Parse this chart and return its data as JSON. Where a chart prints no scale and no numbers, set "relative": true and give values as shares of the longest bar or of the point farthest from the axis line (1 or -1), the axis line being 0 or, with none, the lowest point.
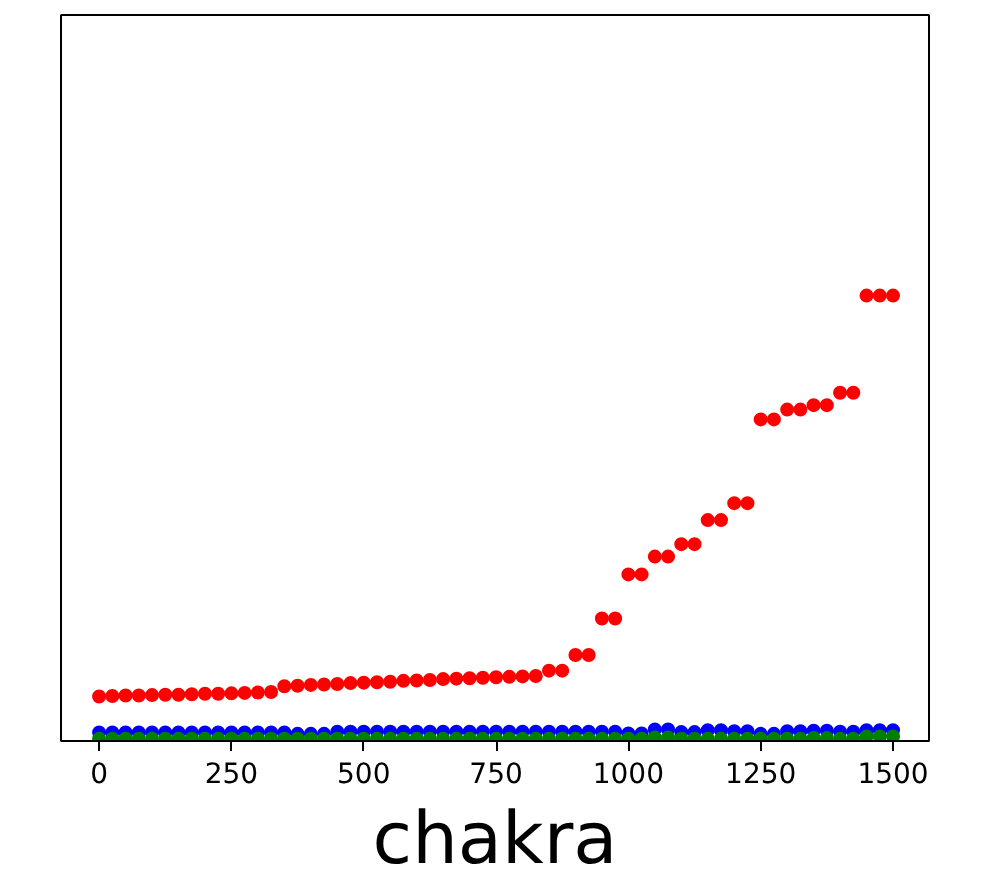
{
  "chart_data": {
    "type": "scatter",
    "relative": true,
    "xlabel": "chakra",
    "xlim": [
      -72,
      1568
    ],
    "xticks": [
      0,
      250,
      500,
      750,
      1000,
      1250,
      1500
    ],
    "tick_labels": "x",
    "marker": "circle",
    "grid": false,
    "x": [
      0,
      25,
      50,
      75,
      100,
      125,
      150,
      175,
      200,
      225,
      250,
      275,
      300,
      325,
      350,
      375,
      400,
      425,
      450,
      475,
      500,
      525,
      550,
      575,
      600,
      625,
      650,
      675,
      700,
      725,
      750,
      775,
      800,
      825,
      850,
      875,
      900,
      925,
      950,
      975,
      1000,
      1025,
      1050,
      1075,
      1100,
      1125,
      1150,
      1175,
      1200,
      1225,
      1250,
      1275,
      1300,
      1325,
      1350,
      1375,
      1400,
      1425,
      1450,
      1475,
      1500
    ],
    "series": [
      {
        "color": "#ff0000",
        "values": [
          0.1,
          0.101,
          0.102,
          0.102,
          0.103,
          0.104,
          0.104,
          0.105,
          0.106,
          0.106,
          0.107,
          0.108,
          0.109,
          0.11,
          0.123,
          0.124,
          0.126,
          0.127,
          0.128,
          0.13,
          0.131,
          0.132,
          0.133,
          0.135,
          0.136,
          0.137,
          0.139,
          0.14,
          0.141,
          0.142,
          0.143,
          0.144,
          0.145,
          0.146,
          0.158,
          0.158,
          0.193,
          0.193,
          0.275,
          0.275,
          0.374,
          0.374,
          0.414,
          0.414,
          0.442,
          0.442,
          0.496,
          0.496,
          0.534,
          0.534,
          0.722,
          0.722,
          0.744,
          0.744,
          0.754,
          0.754,
          0.782,
          0.782,
          1,
          1,
          1
        ]
      },
      {
        "color": "#0000ff",
        "values": [
          0.019,
          0.019,
          0.019,
          0.019,
          0.019,
          0.019,
          0.019,
          0.019,
          0.019,
          0.019,
          0.019,
          0.019,
          0.019,
          0.019,
          0.019,
          0.016,
          0.016,
          0.016,
          0.021,
          0.021,
          0.021,
          0.021,
          0.021,
          0.021,
          0.021,
          0.021,
          0.021,
          0.021,
          0.021,
          0.021,
          0.021,
          0.021,
          0.021,
          0.021,
          0.021,
          0.021,
          0.021,
          0.021,
          0.021,
          0.021,
          0.017,
          0.017,
          0.026,
          0.026,
          0.02,
          0.02,
          0.024,
          0.024,
          0.022,
          0.022,
          0.016,
          0.016,
          0.022,
          0.022,
          0.023,
          0.023,
          0.021,
          0.021,
          0.024,
          0.024,
          0.024
        ]
      },
      {
        "color": "#008000",
        "values": [
          0.005,
          0.005,
          0.005,
          0.005,
          0.005,
          0.005,
          0.005,
          0.005,
          0.005,
          0.005,
          0.005,
          0.005,
          0.005,
          0.005,
          0.005,
          0.005,
          0.005,
          0.005,
          0.005,
          0.005,
          0.005,
          0.005,
          0.005,
          0.005,
          0.005,
          0.005,
          0.005,
          0.005,
          0.005,
          0.005,
          0.005,
          0.005,
          0.005,
          0.005,
          0.005,
          0.005,
          0.005,
          0.005,
          0.005,
          0.005,
          0.005,
          0.005,
          0.008,
          0.008,
          0.005,
          0.005,
          0.005,
          0.005,
          0.005,
          0.005,
          0.005,
          0.005,
          0.005,
          0.005,
          0.007,
          0.007,
          0.005,
          0.005,
          0.01,
          0.01,
          0.01
        ]
      }
    ]
  }
}
